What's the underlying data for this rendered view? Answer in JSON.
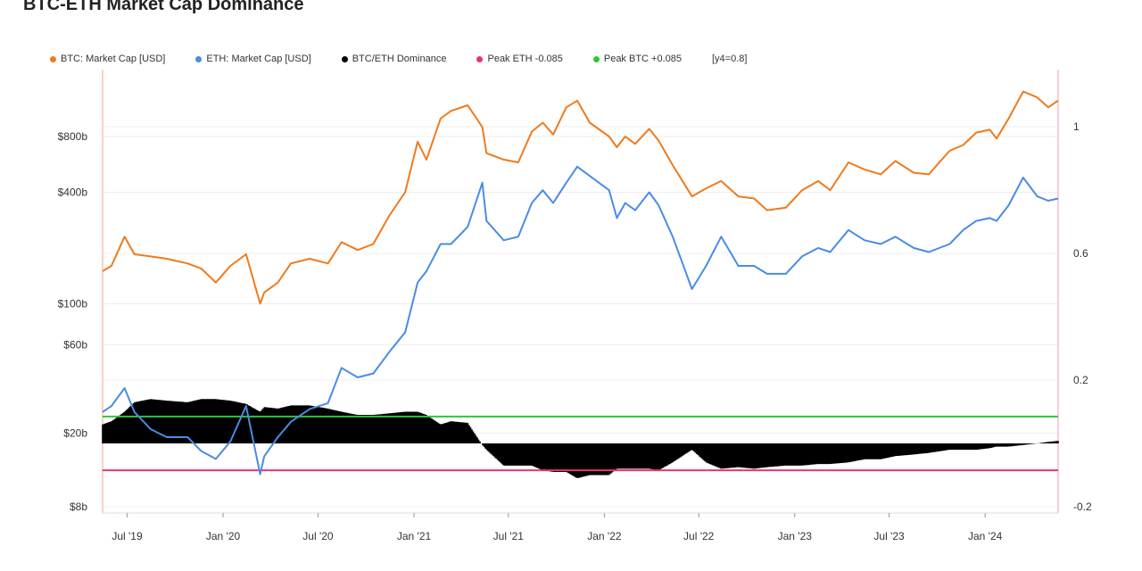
{
  "title": "BTC-ETH Market Cap Dominance",
  "legend": [
    {
      "label": "BTC: Market Cap [USD]",
      "color": "#f07a1c"
    },
    {
      "label": "ETH: Market Cap [USD]",
      "color": "#4a8be6"
    },
    {
      "label": "BTC/ETH Dominance",
      "color": "#000000"
    },
    {
      "label": "Peak ETH -0.085",
      "color": "#e8337a"
    },
    {
      "label": "Peak BTC +0.085",
      "color": "#2fc43e"
    }
  ],
  "legend_note": "[y4=0.8]",
  "chart_data": {
    "type": "line",
    "title": "BTC-ETH Market Cap Dominance",
    "x_tick_labels": [
      "Jul '19",
      "Jan '20",
      "Jul '20",
      "Jan '21",
      "Jul '21",
      "Jan '22",
      "Jul '22",
      "Jan '23",
      "Jul '23",
      "Jan '24"
    ],
    "x_range": [
      "2019-05-15",
      "2024-05-20"
    ],
    "y_left": {
      "scale": "log",
      "unit": "USD",
      "tick_labels": [
        "$8b",
        "$20b",
        "$60b",
        "$100b",
        "$400b",
        "$800b"
      ],
      "tick_values": [
        8000000000.0,
        20000000000.0,
        60000000000.0,
        100000000000.0,
        400000000000.0,
        800000000000.0
      ]
    },
    "y_right": {
      "scale": "linear",
      "tick_labels": [
        "-0.2",
        "0.2",
        "0.6",
        "1"
      ],
      "tick_values": [
        -0.2,
        0.2,
        0.6,
        1.0
      ],
      "range": [
        -0.2,
        1.2
      ]
    },
    "grid": true,
    "legend_position": "top",
    "series": [
      {
        "name": "BTC: Market Cap [USD]",
        "axis": "left",
        "color": "#f07a1c",
        "x": [
          "2019-05-15",
          "2019-06-01",
          "2019-06-26",
          "2019-07-15",
          "2019-08-15",
          "2019-09-15",
          "2019-10-25",
          "2019-11-20",
          "2019-12-18",
          "2020-01-15",
          "2020-02-14",
          "2020-03-12",
          "2020-03-20",
          "2020-04-15",
          "2020-05-10",
          "2020-06-15",
          "2020-07-20",
          "2020-08-15",
          "2020-09-15",
          "2020-10-15",
          "2020-11-15",
          "2020-12-15",
          "2021-01-08",
          "2021-01-25",
          "2021-02-21",
          "2021-03-13",
          "2021-04-14",
          "2021-05-12",
          "2021-05-20",
          "2021-06-22",
          "2021-07-20",
          "2021-08-15",
          "2021-09-05",
          "2021-09-25",
          "2021-10-20",
          "2021-11-10",
          "2021-12-04",
          "2022-01-10",
          "2022-01-25",
          "2022-02-10",
          "2022-03-01",
          "2022-03-28",
          "2022-04-15",
          "2022-05-12",
          "2022-06-18",
          "2022-07-15",
          "2022-08-13",
          "2022-09-15",
          "2022-10-15",
          "2022-11-09",
          "2022-12-15",
          "2023-01-15",
          "2023-02-15",
          "2023-03-10",
          "2023-04-14",
          "2023-05-15",
          "2023-06-15",
          "2023-07-13",
          "2023-08-17",
          "2023-09-15",
          "2023-10-25",
          "2023-11-20",
          "2023-12-15",
          "2024-01-10",
          "2024-01-23",
          "2024-02-15",
          "2024-03-14",
          "2024-04-10",
          "2024-05-01",
          "2024-05-20"
        ],
        "values": [
          150000000000.0,
          160000000000.0,
          230000000000.0,
          185000000000.0,
          180000000000.0,
          175000000000.0,
          165000000000.0,
          155000000000.0,
          130000000000.0,
          160000000000.0,
          185000000000.0,
          100000000000.0,
          115000000000.0,
          130000000000.0,
          165000000000.0,
          175000000000.0,
          165000000000.0,
          215000000000.0,
          195000000000.0,
          210000000000.0,
          300000000000.0,
          400000000000.0,
          750000000000.0,
          600000000000.0,
          1000000000000.0,
          1100000000000.0,
          1180000000000.0,
          900000000000.0,
          650000000000.0,
          600000000000.0,
          580000000000.0,
          850000000000.0,
          950000000000.0,
          820000000000.0,
          1150000000000.0,
          1250000000000.0,
          950000000000.0,
          800000000000.0,
          700000000000.0,
          800000000000.0,
          730000000000.0,
          880000000000.0,
          760000000000.0,
          560000000000.0,
          380000000000.0,
          420000000000.0,
          460000000000.0,
          380000000000.0,
          370000000000.0,
          320000000000.0,
          330000000000.0,
          410000000000.0,
          460000000000.0,
          410000000000.0,
          580000000000.0,
          530000000000.0,
          500000000000.0,
          590000000000.0,
          510000000000.0,
          500000000000.0,
          670000000000.0,
          720000000000.0,
          840000000000.0,
          870000000000.0,
          780000000000.0,
          1000000000000.0,
          1400000000000.0,
          1300000000000.0,
          1150000000000.0,
          1250000000000.0
        ]
      },
      {
        "name": "ETH: Market Cap [USD]",
        "axis": "left",
        "color": "#4a8be6",
        "x": [
          "2019-05-15",
          "2019-06-01",
          "2019-06-26",
          "2019-07-15",
          "2019-08-15",
          "2019-09-15",
          "2019-10-25",
          "2019-11-20",
          "2019-12-18",
          "2020-01-15",
          "2020-02-14",
          "2020-03-12",
          "2020-03-20",
          "2020-04-15",
          "2020-05-10",
          "2020-06-15",
          "2020-07-20",
          "2020-08-15",
          "2020-09-15",
          "2020-10-15",
          "2020-11-15",
          "2020-12-15",
          "2021-01-08",
          "2021-01-25",
          "2021-02-21",
          "2021-03-13",
          "2021-04-14",
          "2021-05-12",
          "2021-05-20",
          "2021-06-22",
          "2021-07-20",
          "2021-08-15",
          "2021-09-05",
          "2021-09-25",
          "2021-10-20",
          "2021-11-10",
          "2021-12-04",
          "2022-01-10",
          "2022-01-25",
          "2022-02-10",
          "2022-03-01",
          "2022-03-28",
          "2022-04-15",
          "2022-05-12",
          "2022-06-18",
          "2022-07-15",
          "2022-08-13",
          "2022-09-15",
          "2022-10-15",
          "2022-11-09",
          "2022-12-15",
          "2023-01-15",
          "2023-02-15",
          "2023-03-10",
          "2023-04-14",
          "2023-05-15",
          "2023-06-15",
          "2023-07-13",
          "2023-08-17",
          "2023-09-15",
          "2023-10-25",
          "2023-11-20",
          "2023-12-15",
          "2024-01-10",
          "2024-01-23",
          "2024-02-15",
          "2024-03-14",
          "2024-04-10",
          "2024-05-01",
          "2024-05-20"
        ],
        "values": [
          26000000000.0,
          28000000000.0,
          35000000000.0,
          26000000000.0,
          21000000000.0,
          19000000000.0,
          19000000000.0,
          16000000000.0,
          14500000000.0,
          18000000000.0,
          28000000000.0,
          12000000000.0,
          15000000000.0,
          19000000000.0,
          23000000000.0,
          27000000000.0,
          29000000000.0,
          45000000000.0,
          40000000000.0,
          42000000000.0,
          55000000000.0,
          70000000000.0,
          130000000000.0,
          150000000000.0,
          210000000000.0,
          210000000000.0,
          260000000000.0,
          450000000000.0,
          280000000000.0,
          220000000000.0,
          230000000000.0,
          350000000000.0,
          410000000000.0,
          350000000000.0,
          450000000000.0,
          550000000000.0,
          490000000000.0,
          410000000000.0,
          290000000000.0,
          350000000000.0,
          320000000000.0,
          400000000000.0,
          340000000000.0,
          230000000000.0,
          120000000000.0,
          160000000000.0,
          230000000000.0,
          160000000000.0,
          160000000000.0,
          145000000000.0,
          145000000000.0,
          180000000000.0,
          200000000000.0,
          190000000000.0,
          250000000000.0,
          220000000000.0,
          210000000000.0,
          230000000000.0,
          200000000000.0,
          190000000000.0,
          210000000000.0,
          250000000000.0,
          280000000000.0,
          290000000000.0,
          280000000000.0,
          340000000000.0,
          480000000000.0,
          380000000000.0,
          360000000000.0,
          370000000000.0
        ]
      },
      {
        "name": "BTC/ETH Dominance",
        "axis": "right",
        "color": "#000000",
        "style": "bars",
        "x": [
          "2019-05-15",
          "2019-06-01",
          "2019-06-26",
          "2019-07-15",
          "2019-08-15",
          "2019-09-15",
          "2019-10-25",
          "2019-11-20",
          "2019-12-18",
          "2020-01-15",
          "2020-02-14",
          "2020-03-12",
          "2020-03-20",
          "2020-04-15",
          "2020-05-10",
          "2020-06-15",
          "2020-07-20",
          "2020-08-15",
          "2020-09-15",
          "2020-10-15",
          "2020-11-15",
          "2020-12-15",
          "2021-01-08",
          "2021-01-25",
          "2021-02-21",
          "2021-03-13",
          "2021-04-14",
          "2021-05-12",
          "2021-05-20",
          "2021-06-22",
          "2021-07-20",
          "2021-08-15",
          "2021-09-05",
          "2021-09-25",
          "2021-10-20",
          "2021-11-10",
          "2021-12-04",
          "2022-01-10",
          "2022-01-25",
          "2022-02-10",
          "2022-03-01",
          "2022-03-28",
          "2022-04-15",
          "2022-05-12",
          "2022-06-18",
          "2022-07-15",
          "2022-08-13",
          "2022-09-15",
          "2022-10-15",
          "2022-11-09",
          "2022-12-15",
          "2023-01-15",
          "2023-02-15",
          "2023-03-10",
          "2023-04-14",
          "2023-05-15",
          "2023-06-15",
          "2023-07-13",
          "2023-08-17",
          "2023-09-15",
          "2023-10-25",
          "2023-11-20",
          "2023-12-15",
          "2024-01-10",
          "2024-01-23",
          "2024-02-15",
          "2024-03-14",
          "2024-04-10",
          "2024-05-01",
          "2024-05-20"
        ],
        "values": [
          0.06,
          0.07,
          0.1,
          0.13,
          0.14,
          0.135,
          0.13,
          0.14,
          0.14,
          0.135,
          0.125,
          0.1,
          0.115,
          0.11,
          0.12,
          0.12,
          0.11,
          0.1,
          0.09,
          0.09,
          0.095,
          0.1,
          0.1,
          0.09,
          0.06,
          0.07,
          0.065,
          -0.005,
          -0.02,
          -0.07,
          -0.07,
          -0.07,
          -0.085,
          -0.09,
          -0.09,
          -0.11,
          -0.1,
          -0.1,
          -0.08,
          -0.08,
          -0.08,
          -0.08,
          -0.085,
          -0.06,
          -0.02,
          -0.06,
          -0.08,
          -0.075,
          -0.08,
          -0.075,
          -0.07,
          -0.07,
          -0.065,
          -0.065,
          -0.06,
          -0.05,
          -0.05,
          -0.04,
          -0.035,
          -0.03,
          -0.02,
          -0.02,
          -0.02,
          -0.015,
          -0.01,
          -0.01,
          -0.005,
          0.0,
          0.005,
          0.008
        ]
      }
    ],
    "reference_lines": [
      {
        "name": "Peak ETH -0.085",
        "axis": "right",
        "value": -0.085,
        "color": "#e8337a"
      },
      {
        "name": "Peak BTC +0.085",
        "axis": "right",
        "value": 0.085,
        "color": "#2fc43e"
      }
    ]
  }
}
